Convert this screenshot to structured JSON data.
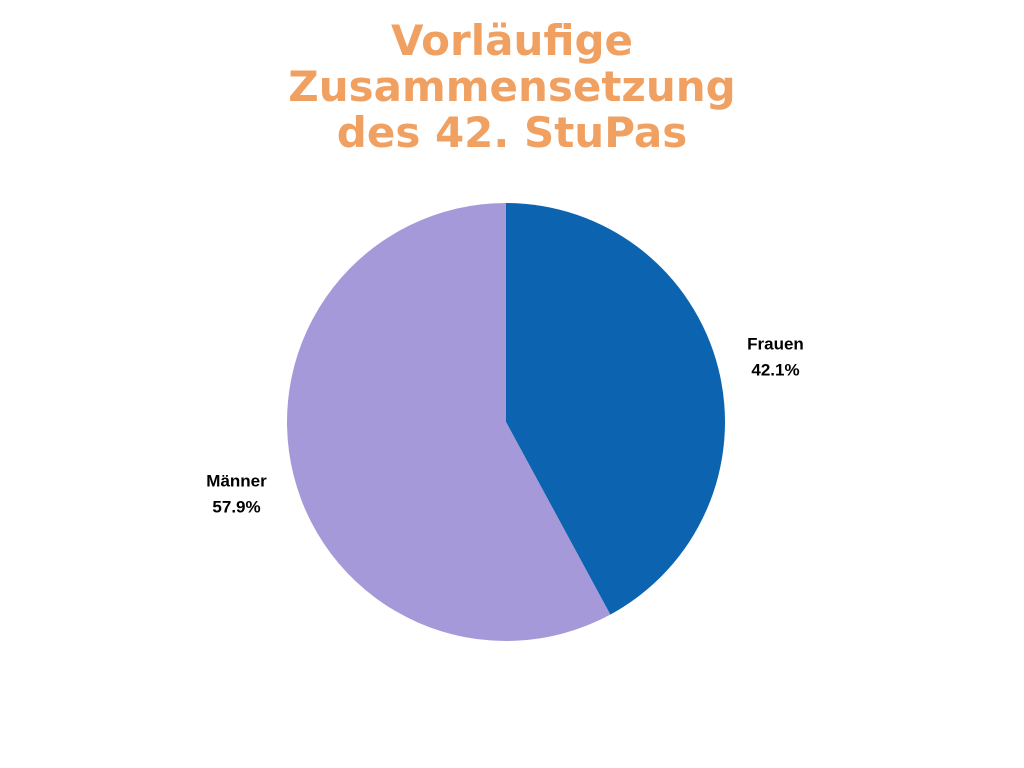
{
  "chart_data": {
    "type": "pie",
    "title_lines": [
      "Vorläufige",
      "Zusammensetzung",
      "des 42. StuPas"
    ],
    "categories": [
      "Frauen",
      "Männer"
    ],
    "values": [
      42.1,
      57.9
    ],
    "value_labels": [
      "42.1%",
      "57.9%"
    ],
    "colors": [
      "#0c64b0",
      "#a599d9"
    ],
    "start_angle_deg": 0,
    "direction": "clockwise"
  }
}
